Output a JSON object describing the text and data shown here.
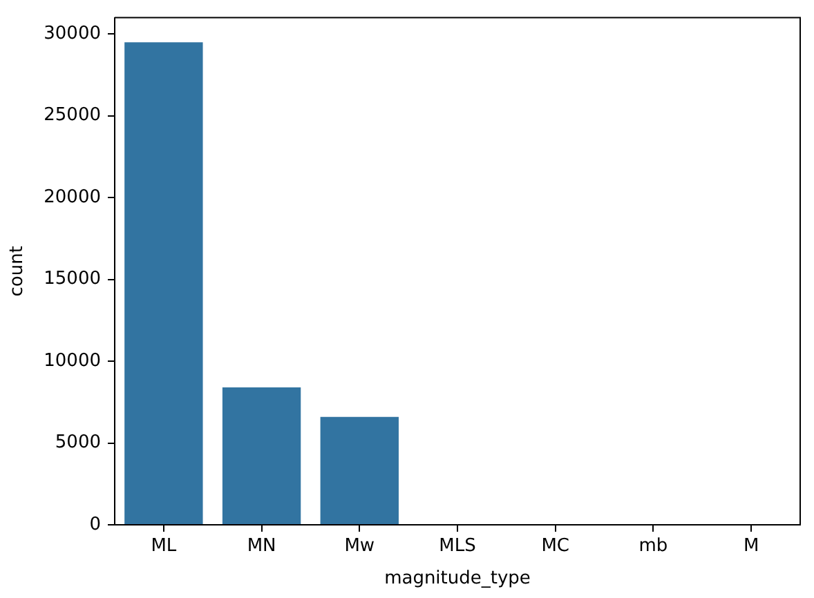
{
  "chart_data": {
    "type": "bar",
    "categories": [
      "ML",
      "MN",
      "Mw",
      "MLS",
      "MC",
      "mb",
      "M"
    ],
    "values": [
      29500,
      8400,
      6600,
      0,
      0,
      0,
      0
    ],
    "color": "#3274a1",
    "xlabel": "magnitude_type",
    "ylabel": "count",
    "ylim": [
      0,
      31000
    ],
    "yticks": [
      0,
      5000,
      10000,
      15000,
      20000,
      25000,
      30000
    ]
  }
}
